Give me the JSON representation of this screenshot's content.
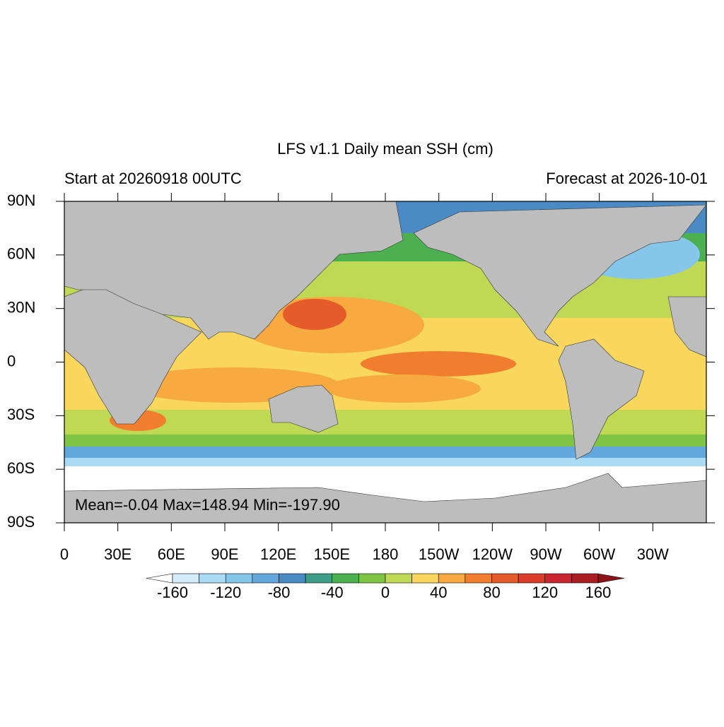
{
  "title": "LFS v1.1 Daily mean SSH (cm)",
  "left_subtitle": "Start at 20260918 00UTC",
  "right_subtitle": "Forecast at 2026-10-01",
  "annotation": "Mean=-0.04  Max=148.94  Min=-197.90",
  "map": {
    "xlim": [
      0,
      360
    ],
    "ylim": [
      -90,
      90
    ],
    "xticks": [
      0,
      {
        "value": 30,
        "label": "30E"
      },
      {
        "value": 60,
        "label": "60E"
      },
      {
        "value": 90,
        "label": "90E"
      },
      {
        "value": 120,
        "label": "120E"
      },
      {
        "value": 150,
        "label": "150E"
      },
      180,
      {
        "value": 210,
        "label": "150W"
      },
      {
        "value": 240,
        "label": "120W"
      },
      {
        "value": 270,
        "label": "90W"
      },
      {
        "value": 300,
        "label": "60W"
      },
      {
        "value": 330,
        "label": "30W"
      }
    ],
    "yticks": [
      {
        "value": 90,
        "label": "90N"
      },
      {
        "value": 60,
        "label": "60N"
      },
      {
        "value": 30,
        "label": "30N"
      },
      0,
      {
        "value": -30,
        "label": "30S"
      },
      {
        "value": -60,
        "label": "60S"
      },
      {
        "value": -90,
        "label": "90S"
      }
    ]
  },
  "colorbar": {
    "levels": [
      -160,
      -140,
      -120,
      -100,
      -80,
      -60,
      -40,
      -20,
      0,
      20,
      40,
      60,
      80,
      100,
      120,
      140,
      160
    ],
    "ticks": [
      -160,
      -120,
      -80,
      -40,
      0,
      40,
      80,
      120,
      160
    ],
    "colors": [
      "#ffffff",
      "#d3ecf9",
      "#a9dcf4",
      "#86c6ea",
      "#63a8dc",
      "#4a8bc6",
      "#3f9e8a",
      "#4cb050",
      "#80c446",
      "#c0d955",
      "#f8d75c",
      "#f6aa40",
      "#f17d2e",
      "#e65b2a",
      "#db3d2c",
      "#c92531",
      "#aa1e23",
      "#8b1418"
    ]
  }
}
